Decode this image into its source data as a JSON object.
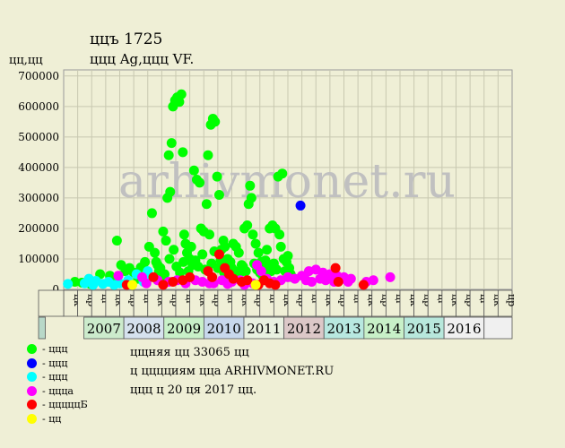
{
  "header": {
    "title": "ццъ 1725",
    "subtitle": "ццц Ag,ццц VF.",
    "ylabel": "цц,цц"
  },
  "watermark": "arhivmonet.ru",
  "info": {
    "line1": "цщняя цц 33065 цц",
    "line2": "ц цццциям цца ARHIVMONET.RU",
    "line3": "ццц ц 20 ця 2017 цц."
  },
  "legend": [
    {
      "label": "- ццц",
      "color": "#00ff00"
    },
    {
      "label": "- ццц",
      "color": "#0000ff"
    },
    {
      "label": "- ццц",
      "color": "#00ffff"
    },
    {
      "label": "- ццца",
      "color": "#ff00ff"
    },
    {
      "label": "- цццццБ",
      "color": "#ff0000"
    },
    {
      "label": "- цц",
      "color": "#ffff00"
    }
  ],
  "chart_data": {
    "type": "scatter",
    "ylim": [
      0,
      720000
    ],
    "yticks": [
      0,
      100000,
      200000,
      300000,
      400000,
      500000,
      600000,
      700000
    ],
    "ytick_labels": [
      "0",
      "100000",
      "200000",
      "300000",
      "400000",
      "500000",
      "600000",
      "700000"
    ],
    "grid": true,
    "quarter_labels": [
      "цк",
      "цр",
      "цг",
      "цк",
      "цр",
      "цг",
      "цк",
      "цр",
      "цг",
      "цк",
      "цр",
      "цг",
      "цк",
      "цр",
      "цг",
      "цк",
      "цр",
      "цг",
      "цк",
      "цр",
      "цг",
      "цк",
      "цр",
      "цг",
      "цк",
      "цр",
      "цг",
      "цк",
      "цр",
      "цг",
      "цк",
      "цр"
    ],
    "year_labels": [
      "2007",
      "2008",
      "2009",
      "2010",
      "2011",
      "2012",
      "2013",
      "2014",
      "2015",
      "2016"
    ],
    "year_colors": [
      "#ccebcc",
      "#d6e2ee",
      "#c8f0c8",
      "#c8d8ec",
      "#e8f0e0",
      "#dcc8c8",
      "#b8e8e0",
      "#c8f0c8",
      "#b8e8dc",
      "#f0f0f0"
    ],
    "series": [
      {
        "color": "#00ff00",
        "points": [
          [
            0.3,
            25000
          ],
          [
            0.8,
            22000
          ],
          [
            1.4,
            18000
          ],
          [
            2.1,
            50000
          ],
          [
            2.8,
            45000
          ],
          [
            3.0,
            30000
          ],
          [
            3.3,
            160000
          ],
          [
            3.6,
            80000
          ],
          [
            3.9,
            60000
          ],
          [
            4.2,
            70000
          ],
          [
            4.5,
            55000
          ],
          [
            4.8,
            35000
          ],
          [
            5.0,
            72000
          ],
          [
            5.3,
            90000
          ],
          [
            5.6,
            140000
          ],
          [
            5.8,
            250000
          ],
          [
            6.0,
            120000
          ],
          [
            6.2,
            80000
          ],
          [
            6.3,
            60000
          ],
          [
            6.5,
            40000
          ],
          [
            6.6,
            190000
          ],
          [
            6.8,
            160000
          ],
          [
            6.9,
            300000
          ],
          [
            7.0,
            440000
          ],
          [
            7.1,
            320000
          ],
          [
            7.2,
            480000
          ],
          [
            7.3,
            600000
          ],
          [
            7.45,
            620000
          ],
          [
            7.6,
            630000
          ],
          [
            7.75,
            615000
          ],
          [
            7.9,
            640000
          ],
          [
            8.0,
            450000
          ],
          [
            8.1,
            180000
          ],
          [
            8.2,
            150000
          ],
          [
            8.3,
            120000
          ],
          [
            8.5,
            100000
          ],
          [
            8.7,
            80000
          ],
          [
            8.8,
            390000
          ],
          [
            9.0,
            360000
          ],
          [
            9.2,
            350000
          ],
          [
            9.3,
            200000
          ],
          [
            9.5,
            190000
          ],
          [
            9.7,
            280000
          ],
          [
            9.8,
            440000
          ],
          [
            9.9,
            180000
          ],
          [
            10.0,
            540000
          ],
          [
            10.15,
            560000
          ],
          [
            10.3,
            550000
          ],
          [
            10.45,
            370000
          ],
          [
            10.6,
            310000
          ],
          [
            10.75,
            130000
          ],
          [
            10.9,
            160000
          ],
          [
            11.0,
            140000
          ],
          [
            11.2,
            100000
          ],
          [
            11.4,
            90000
          ],
          [
            11.6,
            150000
          ],
          [
            11.8,
            140000
          ],
          [
            12.0,
            120000
          ],
          [
            12.2,
            80000
          ],
          [
            12.4,
            200000
          ],
          [
            12.6,
            210000
          ],
          [
            12.7,
            280000
          ],
          [
            12.8,
            340000
          ],
          [
            12.9,
            300000
          ],
          [
            13.0,
            180000
          ],
          [
            13.2,
            150000
          ],
          [
            13.4,
            120000
          ],
          [
            13.6,
            90000
          ],
          [
            13.8,
            70000
          ],
          [
            14.0,
            130000
          ],
          [
            14.2,
            200000
          ],
          [
            14.4,
            210000
          ],
          [
            14.6,
            200000
          ],
          [
            14.8,
            370000
          ],
          [
            14.9,
            180000
          ],
          [
            15.0,
            140000
          ],
          [
            15.1,
            380000
          ],
          [
            15.2,
            100000
          ],
          [
            15.3,
            60000
          ],
          [
            15.4,
            90000
          ],
          [
            15.5,
            110000
          ],
          [
            15.6,
            70000
          ],
          [
            15.7,
            50000
          ],
          [
            15.8,
            40000
          ],
          [
            6.1,
            90000
          ],
          [
            6.4,
            70000
          ],
          [
            6.7,
            50000
          ],
          [
            7.05,
            100000
          ],
          [
            7.35,
            130000
          ],
          [
            7.55,
            75000
          ],
          [
            7.8,
            55000
          ],
          [
            8.05,
            90000
          ],
          [
            8.4,
            60000
          ],
          [
            8.6,
            140000
          ],
          [
            8.9,
            95000
          ],
          [
            9.1,
            75000
          ],
          [
            9.4,
            115000
          ],
          [
            9.6,
            65000
          ],
          [
            10.05,
            85000
          ],
          [
            10.25,
            125000
          ],
          [
            10.5,
            70000
          ],
          [
            10.7,
            95000
          ],
          [
            10.95,
            55000
          ],
          [
            11.1,
            60000
          ],
          [
            11.3,
            45000
          ],
          [
            11.5,
            70000
          ],
          [
            11.7,
            60000
          ],
          [
            11.9,
            40000
          ],
          [
            12.1,
            55000
          ],
          [
            12.3,
            75000
          ],
          [
            12.5,
            60000
          ],
          [
            13.1,
            85000
          ],
          [
            13.3,
            65000
          ],
          [
            13.5,
            55000
          ],
          [
            13.7,
            45000
          ],
          [
            13.9,
            95000
          ],
          [
            14.1,
            75000
          ],
          [
            14.3,
            60000
          ],
          [
            14.5,
            85000
          ],
          [
            14.7,
            65000
          ]
        ]
      },
      {
        "color": "#0000ff",
        "points": [
          [
            16.4,
            275000
          ]
        ]
      },
      {
        "color": "#00ffff",
        "points": [
          [
            -0.2,
            18000
          ],
          [
            1.0,
            20000
          ],
          [
            1.3,
            35000
          ],
          [
            1.6,
            15000
          ],
          [
            1.8,
            28000
          ],
          [
            2.3,
            18000
          ],
          [
            2.7,
            25000
          ],
          [
            3.1,
            15000
          ],
          [
            3.5,
            20000
          ],
          [
            4.1,
            30000
          ],
          [
            4.7,
            50000
          ],
          [
            5.2,
            25000
          ],
          [
            5.5,
            60000
          ],
          [
            5.7,
            40000
          ]
        ]
      },
      {
        "color": "#ff00ff",
        "points": [
          [
            3.4,
            45000
          ],
          [
            5.1,
            40000
          ],
          [
            5.4,
            20000
          ],
          [
            6.2,
            30000
          ],
          [
            7.0,
            25000
          ],
          [
            7.6,
            30000
          ],
          [
            8.2,
            20000
          ],
          [
            8.9,
            30000
          ],
          [
            9.4,
            25000
          ],
          [
            10.2,
            20000
          ],
          [
            10.8,
            30000
          ],
          [
            11.5,
            25000
          ],
          [
            12.1,
            30000
          ],
          [
            12.7,
            25000
          ],
          [
            13.3,
            80000
          ],
          [
            13.6,
            60000
          ],
          [
            14.0,
            35000
          ],
          [
            14.5,
            25000
          ],
          [
            15.0,
            30000
          ],
          [
            15.5,
            40000
          ],
          [
            16.0,
            35000
          ],
          [
            16.5,
            45000
          ],
          [
            17.0,
            60000
          ],
          [
            17.5,
            65000
          ],
          [
            18.0,
            55000
          ],
          [
            18.5,
            50000
          ],
          [
            19.0,
            45000
          ],
          [
            19.5,
            40000
          ],
          [
            20.0,
            35000
          ],
          [
            21.1,
            25000
          ],
          [
            21.6,
            30000
          ],
          [
            22.8,
            40000
          ],
          [
            9.9,
            20000
          ],
          [
            11.2,
            18000
          ],
          [
            12.4,
            15000
          ],
          [
            13.0,
            20000
          ],
          [
            16.8,
            30000
          ],
          [
            17.2,
            25000
          ],
          [
            17.8,
            35000
          ],
          [
            18.2,
            30000
          ],
          [
            18.8,
            25000
          ],
          [
            19.2,
            30000
          ],
          [
            19.8,
            25000
          ]
        ]
      },
      {
        "color": "#ff0000",
        "points": [
          [
            4.0,
            15000
          ],
          [
            5.9,
            40000
          ],
          [
            6.6,
            15000
          ],
          [
            7.3,
            25000
          ],
          [
            8.0,
            30000
          ],
          [
            8.5,
            40000
          ],
          [
            9.8,
            60000
          ],
          [
            10.1,
            40000
          ],
          [
            10.6,
            115000
          ],
          [
            11.0,
            70000
          ],
          [
            11.3,
            50000
          ],
          [
            11.6,
            35000
          ],
          [
            12.2,
            25000
          ],
          [
            12.6,
            30000
          ],
          [
            13.4,
            15000
          ],
          [
            13.8,
            30000
          ],
          [
            14.2,
            20000
          ],
          [
            14.6,
            15000
          ],
          [
            18.9,
            70000
          ],
          [
            19.1,
            25000
          ],
          [
            20.9,
            15000
          ]
        ]
      },
      {
        "color": "#ffff00",
        "points": [
          [
            4.4,
            15000
          ],
          [
            13.2,
            15000
          ]
        ]
      }
    ]
  }
}
